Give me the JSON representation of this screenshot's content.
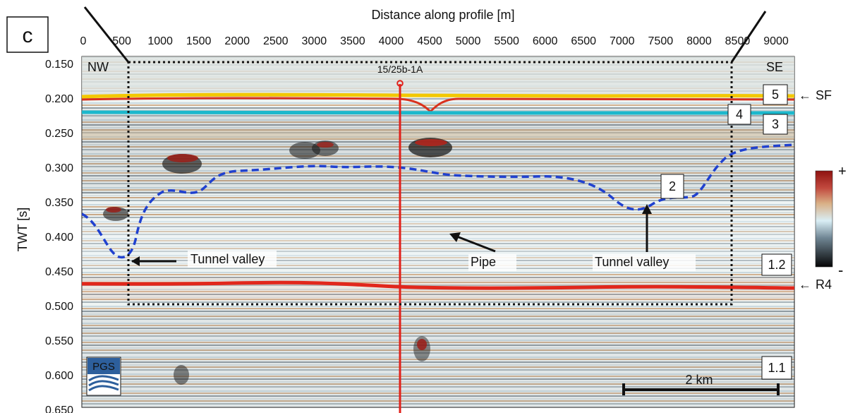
{
  "panel_label": "c",
  "x_axis_title": "Distance along profile [m]",
  "y_axis_title": "TWT [s]",
  "x_ticks": [
    "0",
    "500",
    "1000",
    "1500",
    "2000",
    "2500",
    "3000",
    "3500",
    "4000",
    "4500",
    "5000",
    "5500",
    "6000",
    "6500",
    "7000",
    "7500",
    "8000",
    "8500",
    "9000"
  ],
  "y_ticks": [
    "0.150",
    "0.200",
    "0.250",
    "0.300",
    "0.350",
    "0.400",
    "0.450",
    "0.500",
    "0.550",
    "0.600",
    "0.650"
  ],
  "orientation_left": "NW",
  "orientation_right": "SE",
  "well_label": "15/25b-1A",
  "horizon_labels": {
    "sf": "SF",
    "r4": "R4"
  },
  "units": [
    "5",
    "4",
    "3",
    "2",
    "1.2",
    "1.1"
  ],
  "annotations": {
    "tunnel_valley_left": "Tunnel valley",
    "pipe": "Pipe",
    "tunnel_valley_right": "Tunnel valley"
  },
  "scale_bar": "2 km",
  "logo": "PGS",
  "colorbar_plus": "+",
  "colorbar_minus": "-",
  "colors": {
    "seafloor": "#e6301e",
    "seafloor_inner": "#f7c500",
    "blue_horizon": "#17b8c9",
    "base_red": "#e3261d",
    "valley_outline": "#1e40c8",
    "frame": "#111111",
    "seismic_dark": "#1d1d1d",
    "seismic_red": "#9e2e26",
    "seismic_tan": "#d8b08d",
    "seismic_blue": "#b9d8e6"
  }
}
